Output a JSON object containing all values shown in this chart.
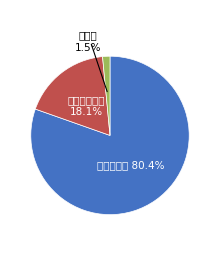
{
  "slices": [
    80.4,
    18.1,
    1.5
  ],
  "colors": [
    "#4472C4",
    "#C0504D",
    "#9BBB59"
  ],
  "startangle": 90,
  "background_color": "#FFFFFF",
  "figsize": [
    2.2,
    2.55
  ],
  "dpi": 100,
  "label_0": "知っている 80.4%",
  "label_1": "知らなかった\n18.1%",
  "label_2_line1": "無回答",
  "label_2_line2": "1.5%"
}
